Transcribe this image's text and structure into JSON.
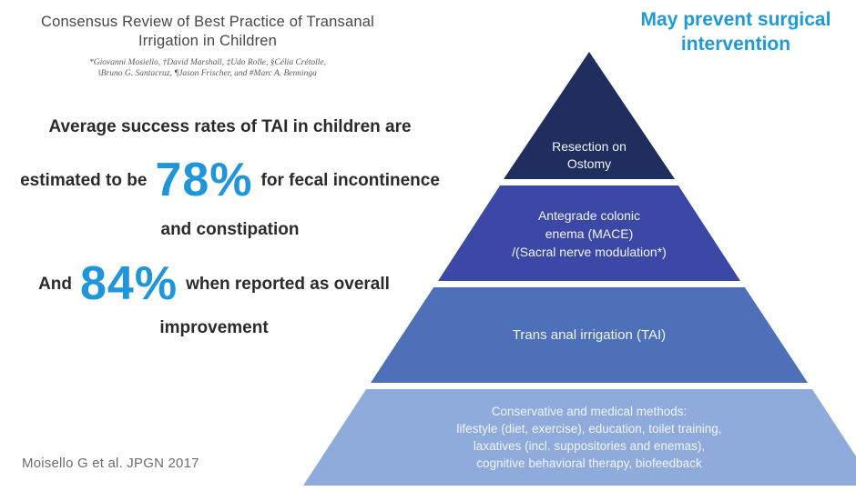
{
  "paper": {
    "title_line1": "Consensus Review of Best Practice of Transanal",
    "title_line2": "Irrigation in Children",
    "authors_line1": "*Giovanni Mosiello, †David Marshall, ‡Udo Rolle, §Célia Crétolle,",
    "authors_line2": "‖Bruno G. Santacruz, ¶Jason Frischer, and #Marc A. Benninga"
  },
  "stats": {
    "stat1_intro": "Average success rates of TAI in children are",
    "stat1_lead": "estimated to be",
    "stat1_value": "78%",
    "stat1_suffix": "for fecal incontinence",
    "stat1_tail": "and constipation",
    "stat2_lead": "And",
    "stat2_value": "84%",
    "stat2_suffix": "when reported as overall",
    "stat2_tail": "improvement"
  },
  "callout": {
    "line1": "May prevent surgical",
    "line2": "intervention"
  },
  "citation": "Moisello G et al. JPGN 2017",
  "pyramid": {
    "tiers": [
      {
        "name": "resection-on-ostomy",
        "color": "#1f2d5f",
        "lines": [
          "Resection on",
          "Ostomy"
        ]
      },
      {
        "name": "antegrade-colonic-enema",
        "color": "#3b48a5",
        "lines": [
          "Antegrade colonic",
          "enema (MACE)",
          "/(Sacral nerve modulation*)"
        ]
      },
      {
        "name": "trans-anal-irrigation",
        "color": "#4e70b8",
        "lines": [
          "Trans anal irrigation (TAI)"
        ]
      },
      {
        "name": "conservative-medical-methods",
        "color": "#8fabdb",
        "lines": [
          "Conservative and medical methods:",
          "lifestyle (diet, exercise), education, toilet training,",
          "laxatives (incl. suppositories and enemas),",
          "cognitive behavioral therapy, biofeedback"
        ]
      }
    ]
  },
  "colors": {
    "accent_blue": "#1f96db",
    "callout_blue": "#1f9ad9",
    "body_text": "#2b2b2b",
    "title_text": "#474747"
  }
}
